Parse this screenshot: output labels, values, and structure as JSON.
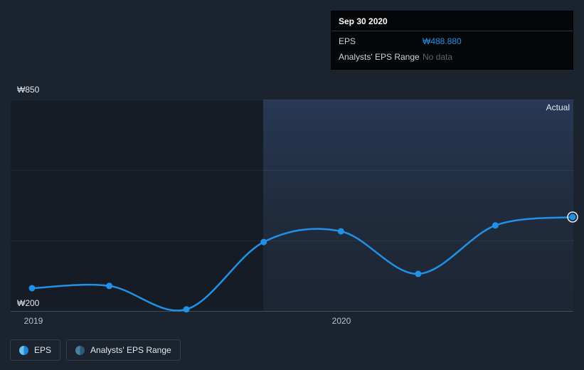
{
  "colors": {
    "background": "#1b232e",
    "line": "#2191e8",
    "highlight_ring": "#e8eef4",
    "eps_value": "#2191e8",
    "no_data": "#5b6470"
  },
  "tooltip": {
    "title": "Sep 30 2020",
    "rows": [
      {
        "label": "EPS",
        "value": "₩488.880",
        "value_color": "#2191e8"
      },
      {
        "label": "Analysts' EPS Range",
        "value": "No data",
        "value_color": "#5b6470"
      }
    ]
  },
  "axis": {
    "y_top": "₩850",
    "y_bottom": "₩200",
    "x_ticks": [
      "2019",
      "2020"
    ],
    "region_label": "Actual"
  },
  "legend": [
    {
      "label": "EPS"
    },
    {
      "label": "Analysts' EPS Range"
    }
  ],
  "chart_data": {
    "type": "line",
    "title": "",
    "xlabel": "",
    "ylabel": "",
    "ylim": [
      200,
      850
    ],
    "y_tick_labels": [
      "₩850",
      "₩200"
    ],
    "x_tick_labels": [
      "2019",
      "2020"
    ],
    "legend_entries": [
      "EPS",
      "Analysts' EPS Range"
    ],
    "annotations": [
      "Actual"
    ],
    "grid": true,
    "series": [
      {
        "name": "EPS",
        "values": [
          270,
          277,
          205,
          412,
          445,
          314,
          463,
          488.88
        ],
        "highlighted_point": {
          "index": 7,
          "date": "Sep 30 2020",
          "eps": "₩488.880",
          "analysts_eps_range": "No data"
        }
      }
    ]
  }
}
